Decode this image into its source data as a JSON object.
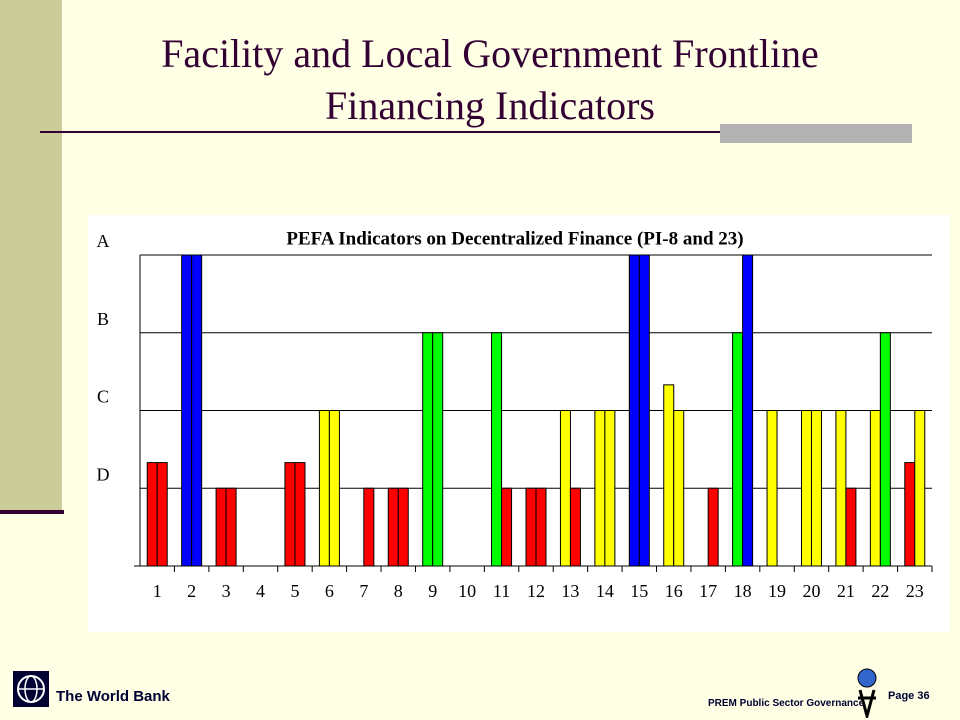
{
  "header": {
    "title": "Facility and Local Government Frontline Financing Indicators"
  },
  "footer": {
    "org": "The World Bank",
    "unit": "PREM Public Sector Governance",
    "page": "Page 36"
  },
  "chart_data": {
    "type": "bar",
    "title": "PEFA Indicators on Decentralized Finance (PI-8 and 23)",
    "categories": [
      "1",
      "2",
      "3",
      "4",
      "5",
      "6",
      "7",
      "8",
      "9",
      "10",
      "11",
      "12",
      "13",
      "14",
      "15",
      "16",
      "17",
      "18",
      "19",
      "20",
      "21",
      "22",
      "23"
    ],
    "series": [
      {
        "values": [
          1.33,
          4,
          1,
          null,
          1.33,
          2,
          null,
          1,
          3,
          null,
          3,
          1,
          2,
          2,
          4,
          2.33,
          null,
          3,
          2,
          2,
          2,
          2,
          1.33
        ],
        "colors": [
          "#ff0000",
          "#0000ff",
          "#ff0000",
          null,
          "#ff0000",
          "#ffff00",
          null,
          "#ff0000",
          "#00ff00",
          null,
          "#00ff00",
          "#ff0000",
          "#ffff00",
          "#ffff00",
          "#0000ff",
          "#ffff00",
          null,
          "#00ff00",
          "#ffff00",
          "#ffff00",
          "#ffff00",
          "#ffff00",
          "#ff0000"
        ]
      },
      {
        "values": [
          1.33,
          4,
          1,
          null,
          1.33,
          2,
          1,
          1,
          3,
          null,
          1,
          1,
          1,
          2,
          4,
          2,
          1,
          4,
          null,
          2,
          1,
          3,
          2
        ],
        "colors": [
          "#ff0000",
          "#0000ff",
          "#ff0000",
          null,
          "#ff0000",
          "#ffff00",
          "#ff0000",
          "#ff0000",
          "#00ff00",
          null,
          "#ff0000",
          "#ff0000",
          "#ff0000",
          "#ffff00",
          "#0000ff",
          "#ffff00",
          "#ff0000",
          "#0000ff",
          null,
          "#ffff00",
          "#ff0000",
          "#00ff00",
          "#ffff00"
        ]
      }
    ],
    "ylim": [
      0,
      4
    ],
    "yticks": [
      {
        "value": 1,
        "label": "D"
      },
      {
        "value": 2,
        "label": "C"
      },
      {
        "value": 3,
        "label": "B"
      },
      {
        "value": 4,
        "label": "A"
      }
    ],
    "grid": true
  }
}
